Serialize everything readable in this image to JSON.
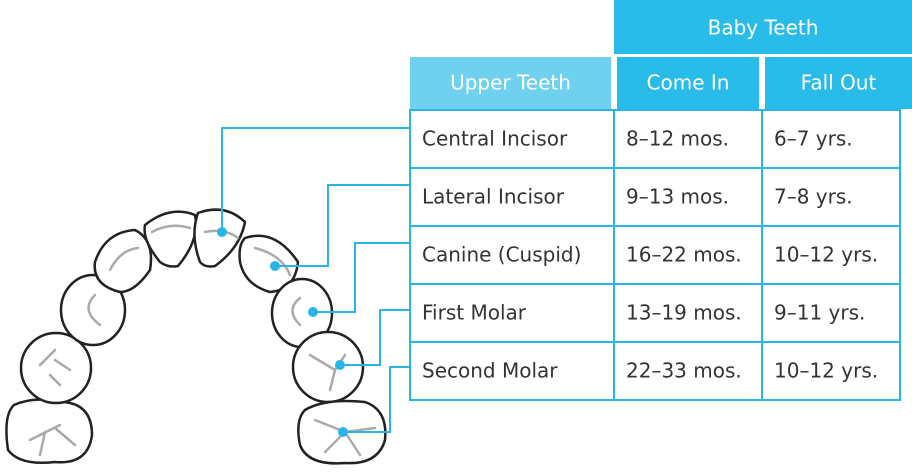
{
  "table": {
    "group": "Baby Teeth",
    "columns": [
      "Upper Teeth",
      "Come In",
      "Fall Out"
    ],
    "rows": [
      [
        "Central Incisor",
        "8–12 mos.",
        "6–7 yrs."
      ],
      [
        "Lateral Incisor",
        "9–13 mos.",
        "7–8 yrs."
      ],
      [
        "Canine (Cuspid)",
        "16–22 mos.",
        "10–12 yrs."
      ],
      [
        "First Molar",
        "13–19 mos.",
        "9–11 yrs."
      ],
      [
        "Second Molar",
        "22–33 mos.",
        "10–12 yrs."
      ]
    ]
  }
}
